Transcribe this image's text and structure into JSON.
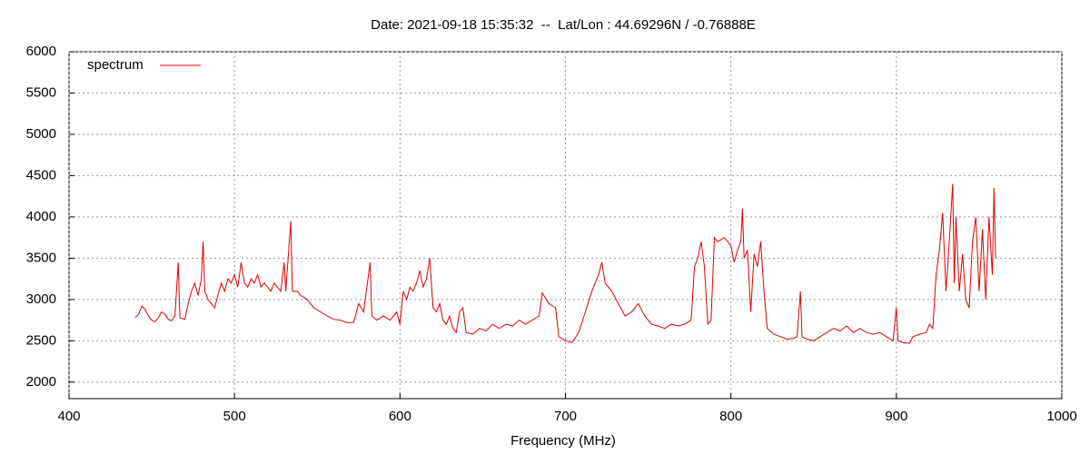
{
  "chart_data": {
    "type": "line",
    "title": "Date: 2021-09-18 15:35:32  --  Lat/Lon : 44.69296N / -0.76888E",
    "x_label": "Frequency (MHz)",
    "xlim": [
      400,
      1000
    ],
    "xticks": [
      400,
      500,
      600,
      700,
      800,
      900,
      1000
    ],
    "ylim": [
      1800,
      6000
    ],
    "yticks": [
      2000,
      2500,
      3000,
      3500,
      4000,
      4500,
      5000,
      5500,
      6000
    ],
    "grid": true,
    "legend": "upper left",
    "x": [
      440,
      442,
      444,
      446,
      448,
      450,
      452,
      454,
      456,
      458,
      460,
      462,
      464,
      466,
      467,
      470,
      472,
      474,
      476,
      478,
      480,
      481,
      482,
      484,
      486,
      488,
      490,
      492,
      494,
      496,
      498,
      500,
      502,
      504,
      506,
      508,
      510,
      512,
      514,
      516,
      518,
      520,
      522,
      524,
      526,
      528,
      530,
      531,
      534,
      535,
      538,
      540,
      544,
      548,
      552,
      556,
      560,
      564,
      568,
      572,
      575,
      578,
      582,
      583,
      586,
      590,
      594,
      598,
      600,
      602,
      604,
      606,
      608,
      610,
      612,
      614,
      616,
      618,
      619,
      620,
      622,
      624,
      626,
      628,
      630,
      632,
      634,
      636,
      638,
      640,
      644,
      648,
      652,
      656,
      660,
      664,
      668,
      672,
      676,
      680,
      684,
      686,
      690,
      694,
      696,
      700,
      704,
      708,
      712,
      716,
      720,
      722,
      724,
      728,
      732,
      736,
      740,
      744,
      748,
      752,
      756,
      760,
      764,
      768,
      772,
      776,
      778,
      780,
      782,
      784,
      786,
      788,
      790,
      792,
      796,
      800,
      802,
      804,
      806,
      807,
      808,
      810,
      812,
      814,
      816,
      818,
      820,
      822,
      826,
      830,
      834,
      838,
      840,
      842,
      843,
      846,
      850,
      854,
      858,
      862,
      866,
      870,
      874,
      878,
      882,
      886,
      890,
      894,
      898,
      900,
      901,
      904,
      908,
      910,
      914,
      918,
      920,
      922,
      924,
      926,
      928,
      930,
      932,
      934,
      935,
      936,
      938,
      940,
      942,
      944,
      946,
      948,
      950,
      952,
      954,
      956,
      958,
      959,
      960
    ],
    "series": [
      {
        "name": "spectrum",
        "color": "#e00000",
        "values": [
          2780,
          2820,
          2920,
          2880,
          2800,
          2750,
          2730,
          2780,
          2850,
          2820,
          2760,
          2740,
          2800,
          3450,
          2780,
          2760,
          2950,
          3100,
          3200,
          3050,
          3250,
          3700,
          3100,
          3000,
          2950,
          2900,
          3050,
          3200,
          3100,
          3250,
          3200,
          3300,
          3150,
          3450,
          3200,
          3150,
          3250,
          3200,
          3300,
          3150,
          3200,
          3150,
          3100,
          3200,
          3150,
          3100,
          3450,
          3100,
          3950,
          3100,
          3100,
          3050,
          3000,
          2900,
          2850,
          2800,
          2760,
          2750,
          2720,
          2720,
          2950,
          2850,
          3450,
          2800,
          2750,
          2800,
          2750,
          2850,
          2700,
          3100,
          3000,
          3150,
          3100,
          3200,
          3350,
          3150,
          3250,
          3500,
          3200,
          2900,
          2850,
          2950,
          2750,
          2700,
          2800,
          2650,
          2600,
          2850,
          2900,
          2600,
          2580,
          2650,
          2620,
          2700,
          2650,
          2700,
          2680,
          2750,
          2700,
          2750,
          2800,
          3080,
          2950,
          2900,
          2550,
          2500,
          2480,
          2600,
          2850,
          3100,
          3300,
          3450,
          3200,
          3100,
          2950,
          2800,
          2850,
          2950,
          2800,
          2700,
          2680,
          2650,
          2700,
          2680,
          2700,
          2750,
          3400,
          3500,
          3700,
          3400,
          2700,
          2750,
          3750,
          3700,
          3750,
          3650,
          3450,
          3600,
          3700,
          4100,
          3500,
          3600,
          2850,
          3550,
          3400,
          3700,
          3100,
          2650,
          2580,
          2550,
          2520,
          2530,
          2550,
          3100,
          2550,
          2520,
          2500,
          2550,
          2600,
          2650,
          2620,
          2680,
          2600,
          2650,
          2600,
          2580,
          2600,
          2550,
          2500,
          2900,
          2500,
          2480,
          2470,
          2550,
          2580,
          2600,
          2700,
          2650,
          3300,
          3600,
          4050,
          3100,
          3700,
          4400,
          3200,
          4000,
          3100,
          3550,
          3000,
          2900,
          3700,
          4000,
          3100,
          3850,
          3000,
          4000,
          3300,
          4350,
          3500
        ]
      }
    ]
  }
}
